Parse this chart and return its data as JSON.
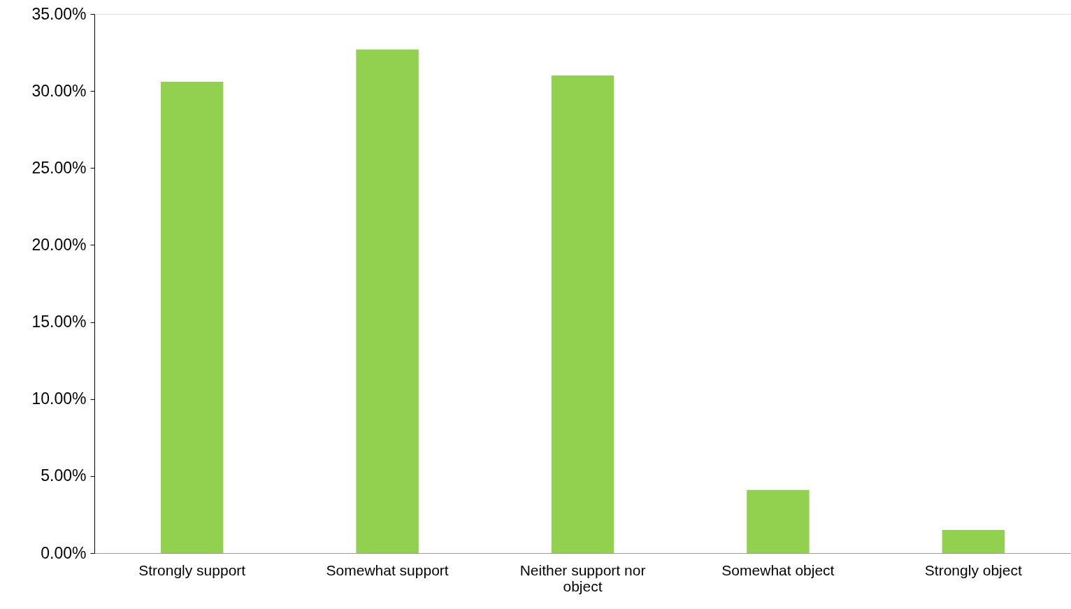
{
  "chart_data": {
    "type": "bar",
    "categories": [
      "Strongly support",
      "Somewhat support",
      "Neither support nor object",
      "Somewhat object",
      "Strongly object"
    ],
    "values": [
      30.6,
      32.7,
      31.0,
      4.1,
      1.5
    ],
    "color": "#92d050",
    "ylim": [
      0,
      35
    ],
    "yticks": [
      {
        "value": 0,
        "label": "0.00%"
      },
      {
        "value": 5,
        "label": "5.00%"
      },
      {
        "value": 10,
        "label": "10.00%"
      },
      {
        "value": 15,
        "label": "15.00%"
      },
      {
        "value": 20,
        "label": "20.00%"
      },
      {
        "value": 25,
        "label": "25.00%"
      },
      {
        "value": 30,
        "label": "30.00%"
      },
      {
        "value": 35,
        "label": "35.00%"
      }
    ],
    "grid": false
  }
}
